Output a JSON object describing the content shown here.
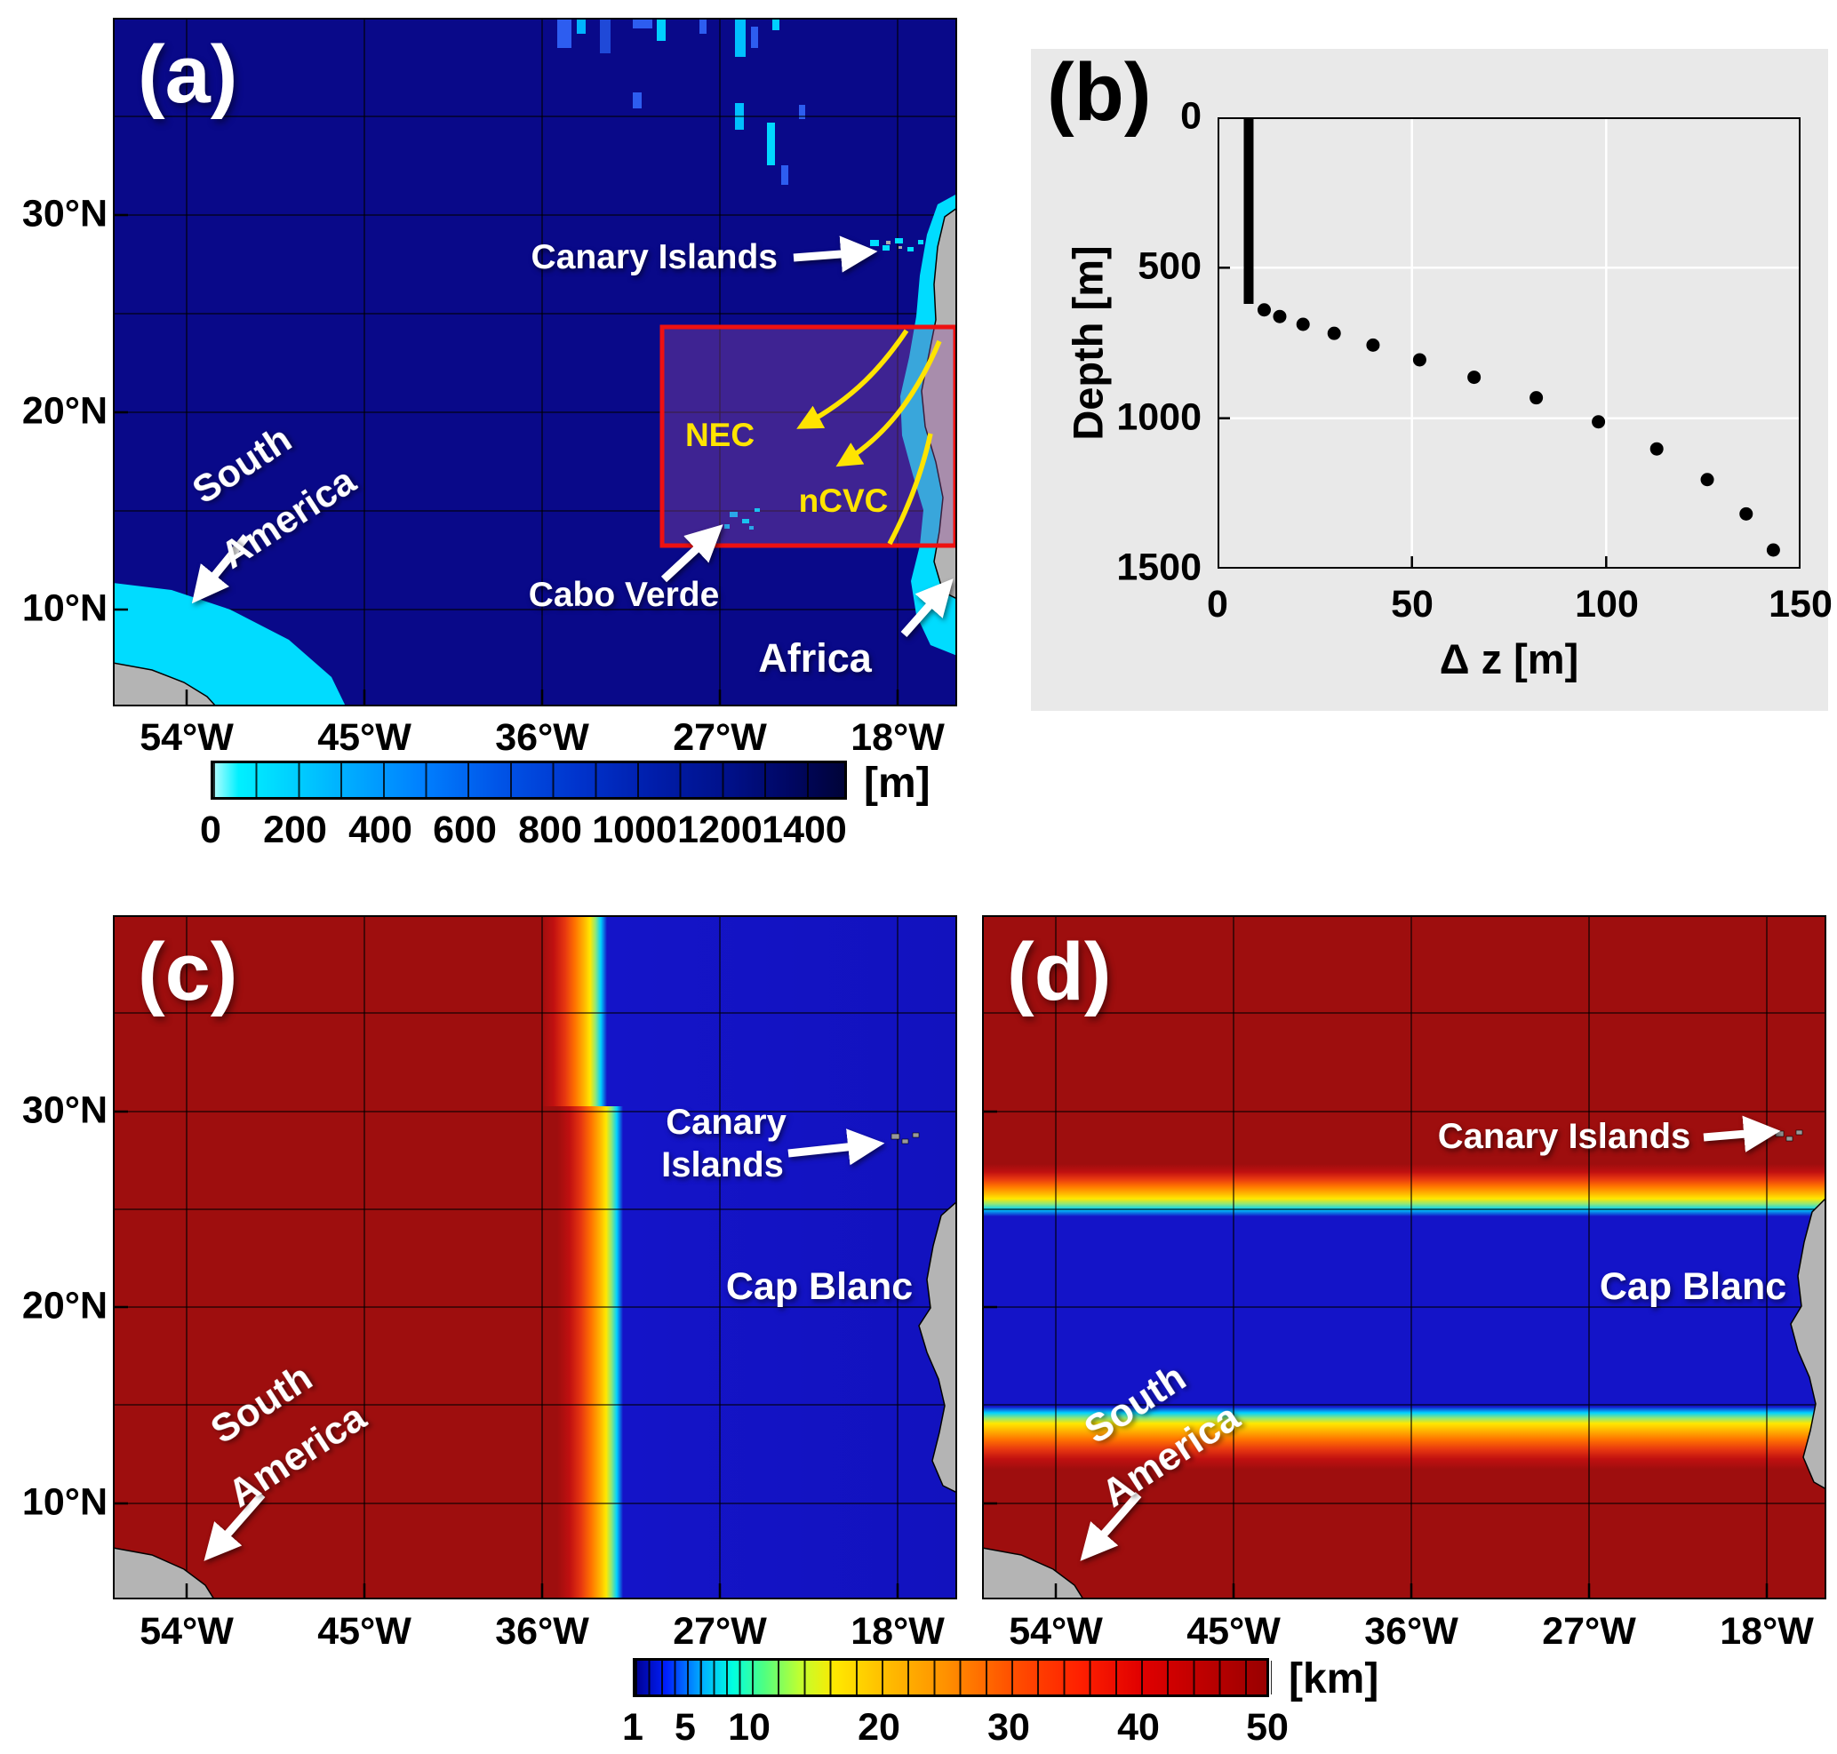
{
  "panel_a": {
    "letter": "(a)",
    "x_ticks": [
      "54°W",
      "45°W",
      "36°W",
      "27°W",
      "18°W"
    ],
    "y_ticks": [
      "30°N",
      "20°N",
      "10°N"
    ],
    "annotations": {
      "canary": "Canary Islands",
      "south1": "South",
      "south2": "America",
      "cabo_verde": "Cabo Verde",
      "africa": "Africa",
      "nec": "NEC",
      "ncvc": "nCVC"
    },
    "colorbar": {
      "ticks": [
        "0",
        "200",
        "400",
        "600",
        "800",
        "1000",
        "1200",
        "1400"
      ],
      "unit": "[m]"
    }
  },
  "panel_b": {
    "letter": "(b)",
    "ylabel": "Depth  [m]",
    "xlabel": "Δ z  [m]",
    "x_ticks": [
      "0",
      "50",
      "100",
      "150"
    ],
    "y_ticks": [
      "0",
      "500",
      "1000",
      "1500"
    ]
  },
  "panel_c": {
    "letter": "(c)",
    "x_ticks": [
      "54°W",
      "45°W",
      "36°W",
      "27°W",
      "18°W"
    ],
    "y_ticks": [
      "30°N",
      "20°N",
      "10°N"
    ],
    "annotations": {
      "canary1": "Canary",
      "canary2": "Islands",
      "cap_blanc": "Cap Blanc",
      "south1": "South",
      "south2": "America"
    }
  },
  "panel_d": {
    "letter": "(d)",
    "x_ticks": [
      "54°W",
      "45°W",
      "36°W",
      "27°W",
      "18°W"
    ],
    "annotations": {
      "canary": "Canary Islands",
      "cap_blanc": "Cap Blanc",
      "south1": "South",
      "south2": "America"
    }
  },
  "colorbar_km": {
    "ticks": [
      "1",
      "5",
      "10",
      "20",
      "30",
      "40",
      "50"
    ],
    "unit": "[km]"
  },
  "chart_data": [
    {
      "panel": "a",
      "type": "heatmap",
      "content": "model bathymetry map of the tropical North Atlantic",
      "colorbar_unit": "[m]",
      "colorbar_ticks": [
        0,
        200,
        400,
        600,
        800,
        1000,
        1200,
        1400
      ],
      "colorbar_range": [
        0,
        1500
      ],
      "x_ticks": [
        "54°W",
        "45°W",
        "36°W",
        "27°W",
        "18°W"
      ],
      "y_ticks": [
        "30°N",
        "20°N",
        "10°N"
      ],
      "annotations": [
        "Canary Islands",
        "South America",
        "Cabo Verde",
        "Africa",
        "NEC",
        "nCVC"
      ],
      "features": [
        "open ocean deeper than 1400 m shown dark blue",
        "shallow shelves shown cyan along South America and northwest Africa",
        "red rectangle nest region ~26°W-17°W, ~13.5°N-24.5°N around Cabo Verde",
        "yellow arrows mark the NEC and nCVC currents inside the nest"
      ]
    },
    {
      "panel": "b",
      "type": "scatter",
      "xlabel": "Δ z  [m]",
      "ylabel": "Depth  [m]",
      "xlim": [
        0,
        150
      ],
      "ylim": [
        0,
        1500
      ],
      "y_axis_reversed": true,
      "surface_line": {
        "dz_m": 8,
        "depth_from_m": 0,
        "depth_to_m": 620
      },
      "points_dz_depth": [
        [
          12,
          640
        ],
        [
          16,
          662
        ],
        [
          22,
          688
        ],
        [
          30,
          718
        ],
        [
          40,
          757
        ],
        [
          52,
          806
        ],
        [
          66,
          864
        ],
        [
          82,
          932
        ],
        [
          98,
          1012
        ],
        [
          113,
          1102
        ],
        [
          126,
          1204
        ],
        [
          136,
          1318
        ],
        [
          143,
          1438
        ]
      ]
    },
    {
      "panel": "c",
      "type": "heatmap",
      "content": "zonal grid resolution map",
      "colorbar_unit": "[km]",
      "colorbar_ticks": [
        1,
        5,
        10,
        20,
        30,
        40,
        50
      ],
      "x_ticks": [
        "54°W",
        "45°W",
        "36°W",
        "27°W",
        "18°W"
      ],
      "y_ticks": [
        "30°N",
        "20°N",
        "10°N"
      ],
      "annotations": [
        "Canary Islands",
        "Cap Blanc",
        "South America"
      ],
      "pattern": "~50 km (dark red) west of ~32°W, narrow rainbow transition band, ~2 km (blue) east of ~31°W up to the African coast"
    },
    {
      "panel": "d",
      "type": "heatmap",
      "content": "meridional grid resolution map",
      "colorbar_unit": "[km]",
      "colorbar_ticks": [
        1,
        5,
        10,
        20,
        30,
        40,
        50
      ],
      "x_ticks": [
        "54°W",
        "45°W",
        "36°W",
        "27°W",
        "18°W"
      ],
      "annotations": [
        "Canary Islands",
        "Cap Blanc",
        "South America"
      ],
      "pattern": "~50 km (dark red) north of ~26°N and south of ~13°N, ~2 km (blue) band between ~14°N and ~25°N"
    }
  ]
}
